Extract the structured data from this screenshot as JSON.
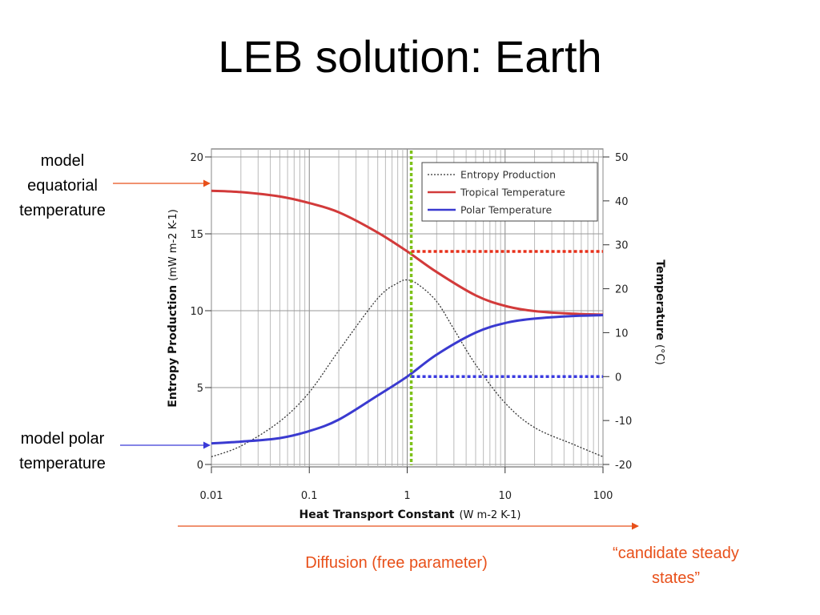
{
  "slide": {
    "title": "LEB solution: Earth",
    "annotations": {
      "equatorial": "model equatorial temperature",
      "equatorial_lines": [
        "model",
        "equatorial",
        "temperature"
      ],
      "polar": "model polar temperature",
      "polar_lines": [
        "model polar",
        "temperature"
      ],
      "diffusion": "Diffusion (free parameter)",
      "steady_states": "“candidate steady states”",
      "steady_lines": [
        "“candidate steady",
        "states”"
      ]
    },
    "colors": {
      "annotation_red": "#e8501a",
      "annotation_blue": "#3a3ad8",
      "marker_green": "#7ec21a",
      "marker_red": "#e8301a",
      "marker_blue": "#3a3ae0"
    }
  },
  "chart_data": {
    "type": "line",
    "x_scale": "log",
    "xlim": [
      0.01,
      100
    ],
    "x_ticks": [
      0.01,
      0.1,
      1,
      10,
      100
    ],
    "x_tick_labels": [
      "0.01",
      "0.1",
      "1",
      "10",
      "100"
    ],
    "xlabel": "Heat Transport Constant",
    "xlabel_unit": "(W m-2 K-1)",
    "ylabel_left": "Entropy Production",
    "ylabel_left_unit": "(mW m-2 K-1)",
    "ylim_left": [
      0,
      20
    ],
    "y_left_ticks": [
      0,
      5,
      10,
      15,
      20
    ],
    "ylabel_right": "Temperature",
    "ylabel_right_unit": "(°C)",
    "ylim_right": [
      -20,
      50
    ],
    "y_right_ticks": [
      -20,
      -10,
      0,
      10,
      20,
      30,
      40,
      50
    ],
    "grid": "vertical-log",
    "legend_position": "top-right",
    "series": [
      {
        "name": "Entropy Production",
        "axis": "left",
        "color": "#333333",
        "style": "dotted",
        "x": [
          0.01,
          0.02,
          0.05,
          0.1,
          0.2,
          0.5,
          0.8,
          1,
          1.3,
          2,
          3,
          5,
          10,
          20,
          50,
          100
        ],
        "y": [
          0.5,
          1.2,
          2.8,
          4.7,
          7.4,
          10.8,
          11.8,
          12.0,
          11.7,
          10.6,
          8.8,
          6.5,
          4.0,
          2.4,
          1.3,
          0.5
        ]
      },
      {
        "name": "Tropical Temperature",
        "axis": "right",
        "color": "#d23a3a",
        "style": "solid",
        "x": [
          0.01,
          0.02,
          0.05,
          0.1,
          0.2,
          0.5,
          1,
          2,
          5,
          10,
          20,
          50,
          100
        ],
        "y": [
          42.3,
          42.0,
          41.0,
          39.5,
          37.4,
          32.8,
          28.5,
          23.8,
          18.5,
          16.1,
          14.9,
          14.3,
          14.1
        ]
      },
      {
        "name": "Polar Temperature",
        "axis": "right",
        "color": "#3a3ad0",
        "style": "solid",
        "x": [
          0.01,
          0.02,
          0.05,
          0.1,
          0.2,
          0.5,
          1,
          2,
          5,
          10,
          20,
          50,
          100
        ],
        "y": [
          -15.2,
          -14.8,
          -14.0,
          -12.4,
          -9.8,
          -4.3,
          0.0,
          5.0,
          10.0,
          12.2,
          13.2,
          13.8,
          14.0
        ]
      }
    ],
    "marker_x": 1.1,
    "marker_tropical_temp": 28.5,
    "marker_polar_temp": 0
  }
}
